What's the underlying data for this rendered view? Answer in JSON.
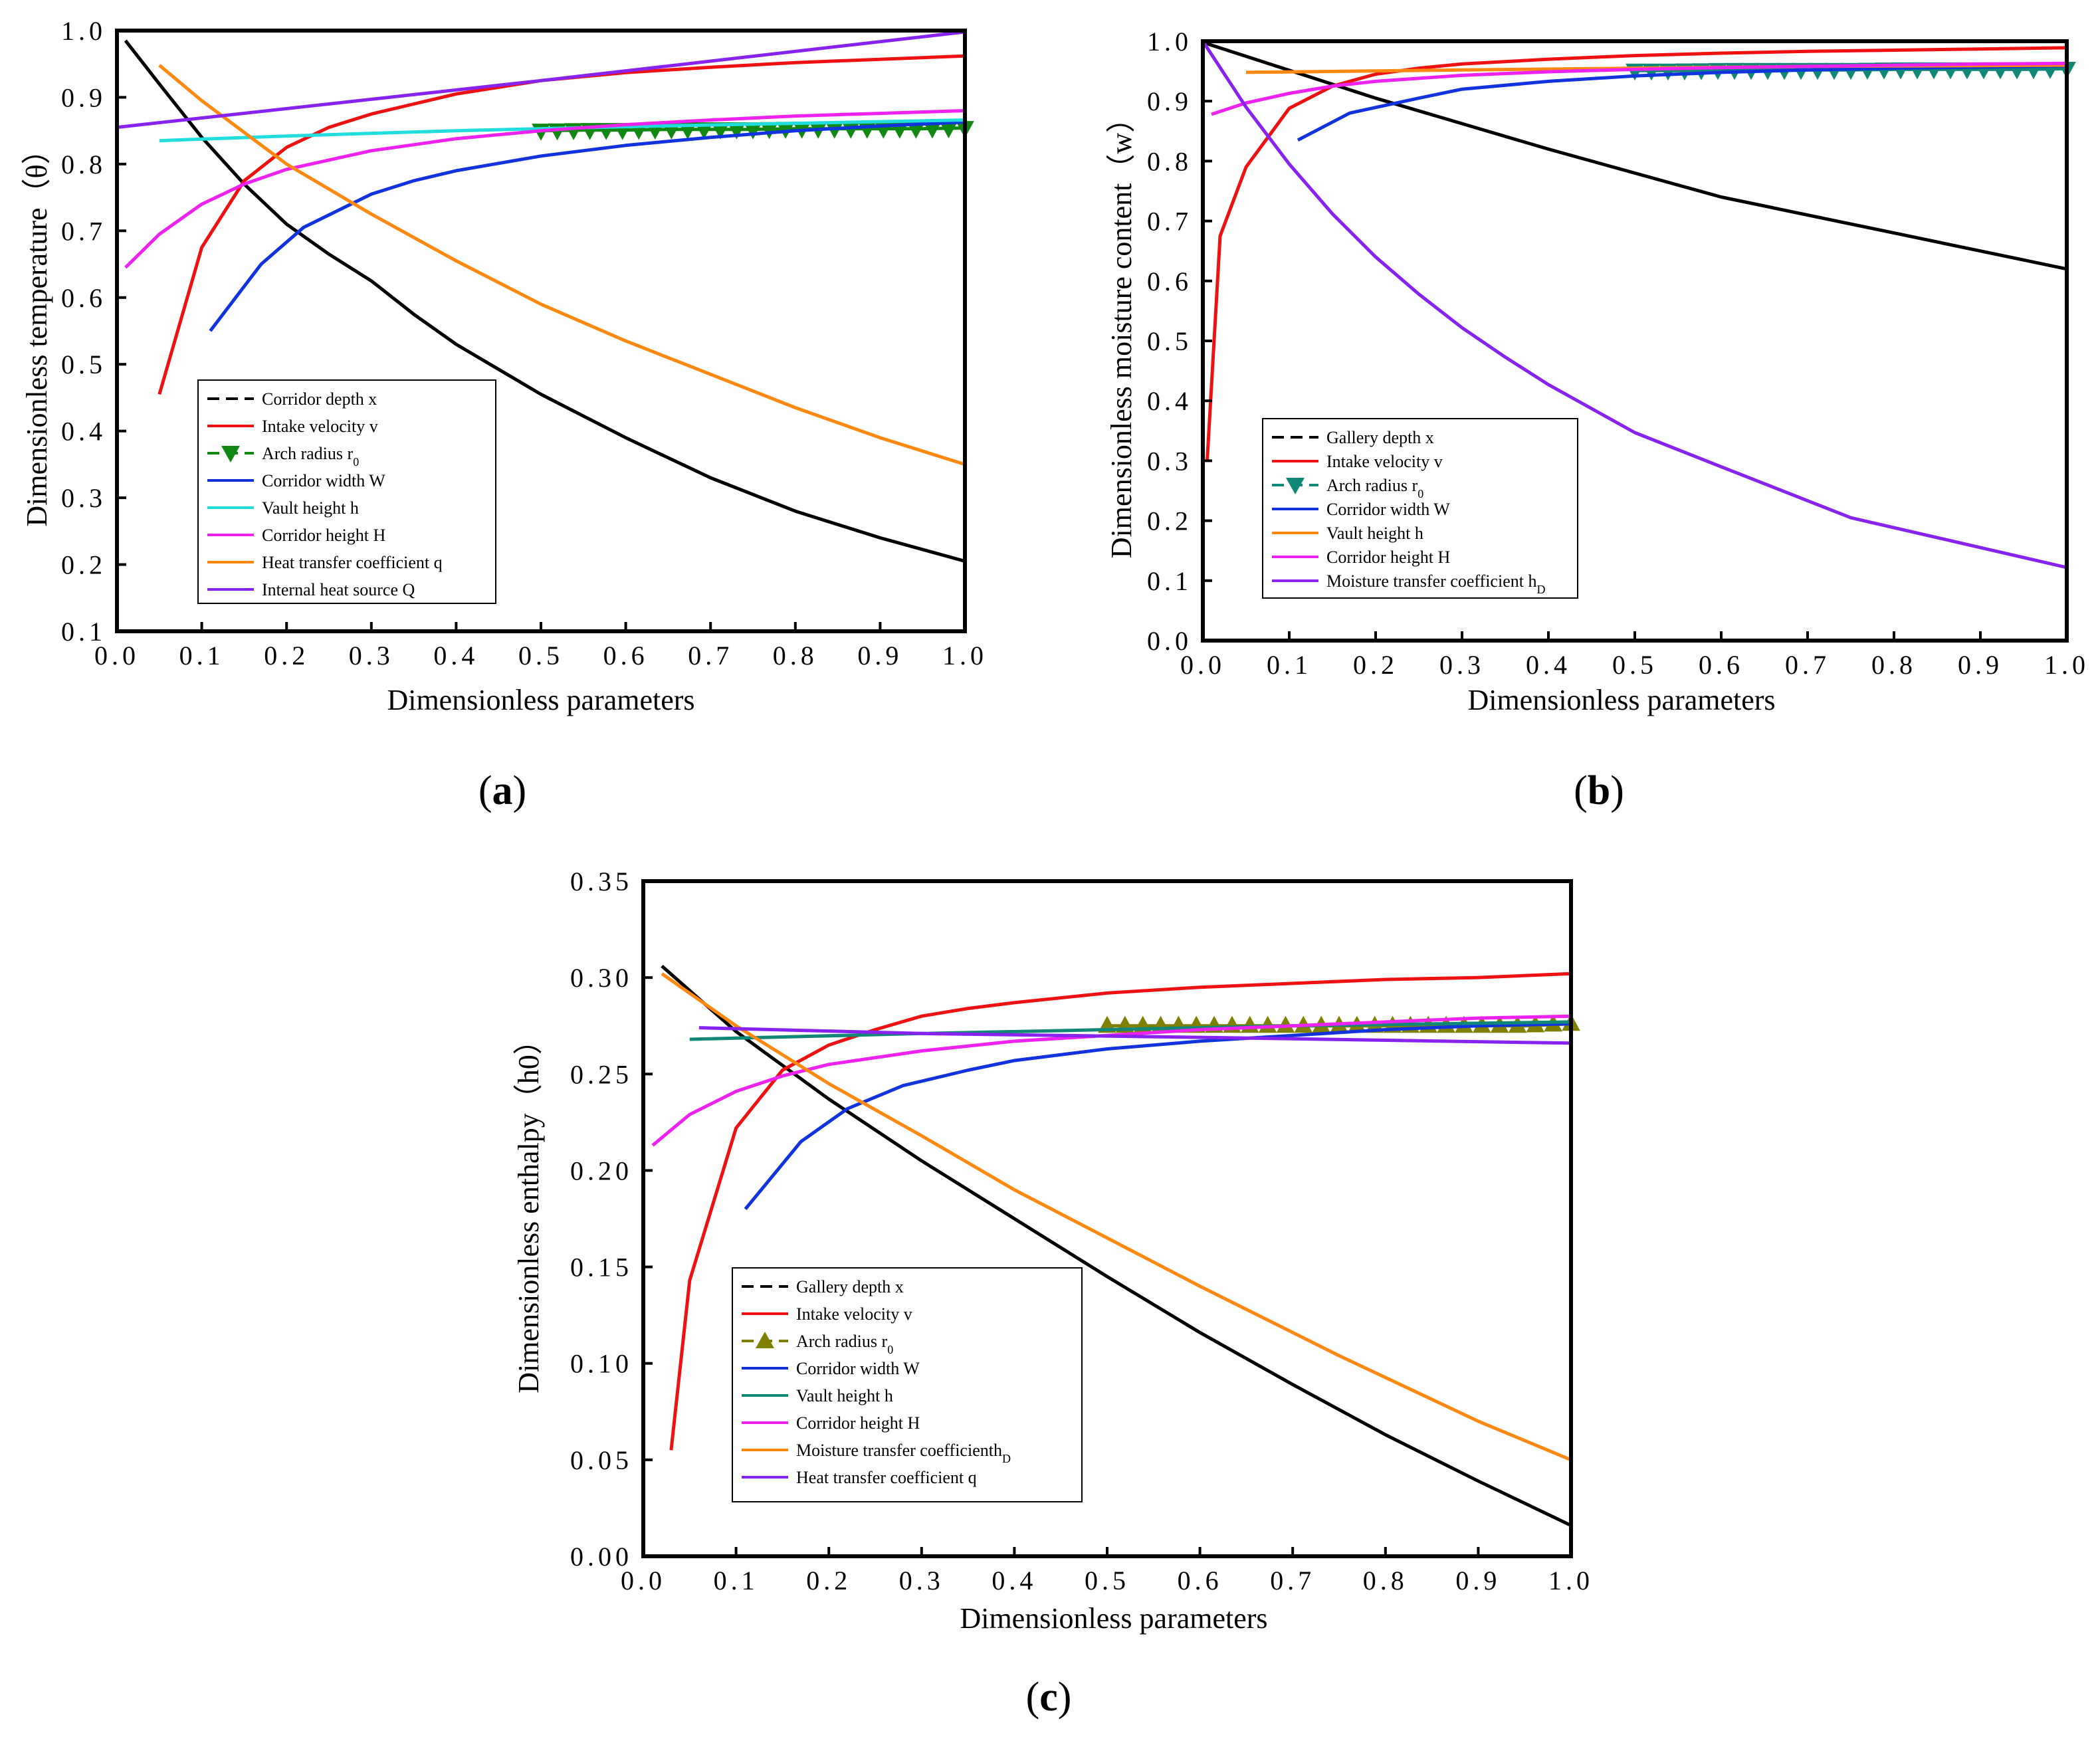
{
  "panels": [
    {
      "letter": "a",
      "open": "(",
      "close": ")"
    },
    {
      "letter": "b",
      "open": "(",
      "close": ")"
    },
    {
      "letter": "c",
      "open": "(",
      "close": ")"
    }
  ],
  "chart_data": [
    {
      "type": "line",
      "panel": "a",
      "xlabel": "Dimensionless parameters",
      "ylabel": "Dimensionless temperature（θ）",
      "xlim": [
        0,
        1.0
      ],
      "ylim": [
        0.1,
        1.0
      ],
      "xticks": [
        0.0,
        0.1,
        0.2,
        0.3,
        0.4,
        0.5,
        0.6,
        0.7,
        0.8,
        0.9,
        1.0
      ],
      "yticks": [
        0.1,
        0.2,
        0.3,
        0.4,
        0.5,
        0.6,
        0.7,
        0.8,
        0.9,
        1.0
      ],
      "xtick_labels": [
        "0.0",
        "0.1",
        "0.2",
        "0.3",
        "0.4",
        "0.5",
        "0.6",
        "0.7",
        "0.8",
        "0.9",
        "1.0"
      ],
      "ytick_labels": [
        "0.1",
        "0.2",
        "0.3",
        "0.4",
        "0.5",
        "0.6",
        "0.7",
        "0.8",
        "0.9",
        "1.0"
      ],
      "legend_position": "lower-left",
      "series": [
        {
          "name": "Corridor  depth x",
          "color": "#000000",
          "legend_style": "dash",
          "x": [
            0.01,
            0.05,
            0.1,
            0.15,
            0.2,
            0.25,
            0.3,
            0.35,
            0.4,
            0.5,
            0.6,
            0.7,
            0.8,
            0.9,
            1.0
          ],
          "y": [
            0.985,
            0.92,
            0.84,
            0.77,
            0.71,
            0.665,
            0.625,
            0.575,
            0.53,
            0.455,
            0.39,
            0.33,
            0.28,
            0.24,
            0.205
          ]
        },
        {
          "name": "Intake velocity v",
          "color": "#ee1111",
          "legend_style": "line",
          "x": [
            0.05,
            0.1,
            0.15,
            0.2,
            0.25,
            0.3,
            0.35,
            0.4,
            0.5,
            0.6,
            0.7,
            0.8,
            0.9,
            1.0
          ],
          "y": [
            0.455,
            0.675,
            0.775,
            0.825,
            0.855,
            0.875,
            0.89,
            0.905,
            0.925,
            0.937,
            0.945,
            0.952,
            0.957,
            0.962
          ]
        },
        {
          "name": "Arch radius r0",
          "color": "#118811",
          "legend_style": "dash-marker",
          "marker": "triangle-down",
          "x": [
            0.5,
            0.55,
            0.6,
            0.65,
            0.7,
            0.75,
            0.8,
            0.85,
            0.9,
            0.95,
            1.0
          ],
          "y": [
            0.85,
            0.851,
            0.851,
            0.852,
            0.852,
            0.852,
            0.853,
            0.853,
            0.853,
            0.853,
            0.854
          ]
        },
        {
          "name": "Corridor width W",
          "color": "#1133dd",
          "legend_style": "line",
          "x": [
            0.11,
            0.17,
            0.22,
            0.3,
            0.35,
            0.4,
            0.5,
            0.6,
            0.7,
            0.8,
            0.9,
            1.0
          ],
          "y": [
            0.55,
            0.65,
            0.705,
            0.755,
            0.775,
            0.79,
            0.812,
            0.828,
            0.84,
            0.85,
            0.857,
            0.863
          ]
        },
        {
          "name": "Vault height h",
          "color": "#22dddd",
          "legend_style": "line",
          "x": [
            0.05,
            0.2,
            0.4,
            0.6,
            0.8,
            1.0
          ],
          "y": [
            0.835,
            0.842,
            0.85,
            0.856,
            0.861,
            0.866
          ]
        },
        {
          "name": "Corridor height H",
          "color": "#ee22ee",
          "legend_style": "line",
          "x": [
            0.01,
            0.05,
            0.1,
            0.15,
            0.2,
            0.3,
            0.4,
            0.5,
            0.6,
            0.7,
            0.8,
            0.9,
            1.0
          ],
          "y": [
            0.645,
            0.695,
            0.74,
            0.77,
            0.792,
            0.82,
            0.838,
            0.85,
            0.859,
            0.866,
            0.872,
            0.876,
            0.88
          ]
        },
        {
          "name": "Heat transfer coefficient q",
          "color": "#ff8811",
          "legend_style": "line",
          "x": [
            0.05,
            0.1,
            0.2,
            0.3,
            0.4,
            0.5,
            0.6,
            0.7,
            0.8,
            0.9,
            1.0
          ],
          "y": [
            0.948,
            0.895,
            0.8,
            0.725,
            0.655,
            0.59,
            0.535,
            0.485,
            0.435,
            0.39,
            0.35
          ]
        },
        {
          "name": "Internal heat source Q",
          "color": "#8822ee",
          "legend_style": "line",
          "x": [
            0.0,
            0.5,
            1.0
          ],
          "y": [
            0.855,
            0.925,
            0.998
          ]
        }
      ]
    },
    {
      "type": "line",
      "panel": "b",
      "xlabel": "Dimensionless parameters",
      "ylabel": "Dimensionless moisture content（w）",
      "xlim": [
        0,
        1.0
      ],
      "ylim": [
        0,
        1.0
      ],
      "xticks": [
        0.0,
        0.1,
        0.2,
        0.3,
        0.4,
        0.5,
        0.6,
        0.7,
        0.8,
        0.9,
        1.0
      ],
      "yticks": [
        0.0,
        0.1,
        0.2,
        0.3,
        0.4,
        0.5,
        0.6,
        0.7,
        0.8,
        0.9,
        1.0
      ],
      "xtick_labels": [
        "0.0",
        "0.1",
        "0.2",
        "0.3",
        "0.4",
        "0.5",
        "0.6",
        "0.7",
        "0.8",
        "0.9",
        "1.0"
      ],
      "ytick_labels": [
        "0.0",
        "0.1",
        "0.2",
        "0.3",
        "0.4",
        "0.5",
        "0.6",
        "0.7",
        "0.8",
        "0.9",
        "1.0"
      ],
      "legend_position": "lower-left",
      "series": [
        {
          "name": "Gallery depth x",
          "color": "#000000",
          "legend_style": "dash",
          "x": [
            0.0,
            0.2,
            0.4,
            0.6,
            0.8,
            1.0
          ],
          "y": [
            0.998,
            0.905,
            0.82,
            0.74,
            0.68,
            0.62
          ]
        },
        {
          "name": "Intake velocity v",
          "color": "#ee1111",
          "legend_style": "line",
          "x": [
            0.005,
            0.02,
            0.05,
            0.1,
            0.15,
            0.2,
            0.25,
            0.3,
            0.4,
            0.5,
            0.6,
            0.7,
            0.8,
            0.9,
            1.0
          ],
          "y": [
            0.3,
            0.675,
            0.79,
            0.888,
            0.925,
            0.945,
            0.955,
            0.962,
            0.97,
            0.976,
            0.98,
            0.983,
            0.985,
            0.987,
            0.989
          ]
        },
        {
          "name": "Arch radius r0",
          "color": "#118877",
          "legend_style": "dash-marker",
          "marker": "triangle-down",
          "x": [
            0.5,
            0.55,
            0.6,
            0.65,
            0.7,
            0.75,
            0.8,
            0.85,
            0.9,
            0.95,
            1.0
          ],
          "y": [
            0.951,
            0.951,
            0.952,
            0.952,
            0.952,
            0.952,
            0.953,
            0.953,
            0.953,
            0.953,
            0.954
          ]
        },
        {
          "name": "Corridor width W",
          "color": "#1133dd",
          "legend_style": "line",
          "x": [
            0.11,
            0.17,
            0.25,
            0.3,
            0.4,
            0.5,
            0.6,
            0.7,
            0.8,
            0.9,
            1.0
          ],
          "y": [
            0.835,
            0.88,
            0.905,
            0.92,
            0.933,
            0.942,
            0.948,
            0.952,
            0.955,
            0.957,
            0.959
          ]
        },
        {
          "name": "Vault height h",
          "color": "#ff8811",
          "legend_style": "line",
          "x": [
            0.05,
            0.3,
            0.5,
            0.7,
            1.0
          ],
          "y": [
            0.948,
            0.952,
            0.955,
            0.958,
            0.96
          ]
        },
        {
          "name": "Corridor height H",
          "color": "#ee22ee",
          "legend_style": "line",
          "x": [
            0.01,
            0.05,
            0.1,
            0.15,
            0.2,
            0.3,
            0.4,
            0.5,
            0.6,
            0.7,
            0.8,
            0.9,
            1.0
          ],
          "y": [
            0.878,
            0.897,
            0.913,
            0.925,
            0.933,
            0.943,
            0.949,
            0.953,
            0.956,
            0.958,
            0.96,
            0.962,
            0.963
          ]
        },
        {
          "name": "Moisture transfer coefficient hD",
          "color": "#8822ee",
          "legend_style": "line",
          "x": [
            0.0,
            0.05,
            0.1,
            0.15,
            0.2,
            0.25,
            0.3,
            0.35,
            0.4,
            0.5,
            0.6,
            0.75,
            1.0
          ],
          "y": [
            1.0,
            0.89,
            0.795,
            0.712,
            0.64,
            0.578,
            0.522,
            0.473,
            0.427,
            0.347,
            0.29,
            0.205,
            0.122
          ]
        }
      ]
    },
    {
      "type": "line",
      "panel": "c",
      "xlabel": "Dimensionless parameters",
      "ylabel": "Dimensionless enthalpy（h0）",
      "xlim": [
        0,
        1.0
      ],
      "ylim": [
        0,
        0.35
      ],
      "xticks": [
        0.0,
        0.1,
        0.2,
        0.3,
        0.4,
        0.5,
        0.6,
        0.7,
        0.8,
        0.9,
        1.0
      ],
      "yticks": [
        0.0,
        0.05,
        0.1,
        0.15,
        0.2,
        0.25,
        0.3,
        0.35
      ],
      "xtick_labels": [
        "0.0",
        "0.1",
        "0.2",
        "0.3",
        "0.4",
        "0.5",
        "0.6",
        "0.7",
        "0.8",
        "0.9",
        "1.0"
      ],
      "ytick_labels": [
        "0.00",
        "0.05",
        "0.10",
        "0.15",
        "0.20",
        "0.25",
        "0.30",
        "0.35"
      ],
      "legend_position": "lower-left",
      "series": [
        {
          "name": "Gallery depth x",
          "color": "#000000",
          "legend_style": "dash",
          "x": [
            0.02,
            0.1,
            0.2,
            0.3,
            0.4,
            0.5,
            0.6,
            0.7,
            0.8,
            0.9,
            1.0
          ],
          "y": [
            0.306,
            0.272,
            0.237,
            0.205,
            0.175,
            0.145,
            0.116,
            0.089,
            0.063,
            0.039,
            0.016
          ]
        },
        {
          "name": "Intake velocity v",
          "color": "#ee1111",
          "legend_style": "line",
          "x": [
            0.03,
            0.05,
            0.1,
            0.15,
            0.2,
            0.25,
            0.3,
            0.35,
            0.4,
            0.5,
            0.6,
            0.7,
            0.8,
            0.9,
            1.0
          ],
          "y": [
            0.055,
            0.143,
            0.222,
            0.252,
            0.265,
            0.273,
            0.28,
            0.284,
            0.287,
            0.292,
            0.295,
            0.297,
            0.299,
            0.3,
            0.302
          ]
        },
        {
          "name": "Arch radius r0",
          "color": "#808000",
          "legend_style": "dash-marker",
          "marker": "triangle-up",
          "x": [
            0.5,
            0.55,
            0.6,
            0.65,
            0.7,
            0.75,
            0.8,
            0.85,
            0.9,
            0.95,
            1.0
          ],
          "y": [
            0.275,
            0.275,
            0.275,
            0.275,
            0.275,
            0.275,
            0.275,
            0.275,
            0.275,
            0.275,
            0.276
          ]
        },
        {
          "name": "Corridor width W",
          "color": "#1133dd",
          "legend_style": "line",
          "x": [
            0.11,
            0.17,
            0.22,
            0.28,
            0.35,
            0.4,
            0.5,
            0.6,
            0.7,
            0.8,
            0.9,
            1.0
          ],
          "y": [
            0.18,
            0.215,
            0.232,
            0.244,
            0.252,
            0.257,
            0.263,
            0.267,
            0.27,
            0.273,
            0.275,
            0.276
          ]
        },
        {
          "name": "Vault height h",
          "color": "#118877",
          "legend_style": "line",
          "x": [
            0.05,
            0.3,
            0.5,
            0.7,
            1.0
          ],
          "y": [
            0.268,
            0.271,
            0.273,
            0.275,
            0.277
          ]
        },
        {
          "name": "Corridor height H",
          "color": "#ee22ee",
          "legend_style": "line",
          "x": [
            0.01,
            0.05,
            0.1,
            0.15,
            0.2,
            0.3,
            0.4,
            0.5,
            0.6,
            0.7,
            0.8,
            0.9,
            1.0
          ],
          "y": [
            0.213,
            0.229,
            0.241,
            0.249,
            0.255,
            0.262,
            0.267,
            0.27,
            0.273,
            0.275,
            0.277,
            0.279,
            0.28
          ]
        },
        {
          "name": "Moisture transfer coefficienthD",
          "color": "#ff8811",
          "legend_style": "line",
          "x": [
            0.02,
            0.1,
            0.2,
            0.3,
            0.4,
            0.5,
            0.6,
            0.75,
            0.9,
            1.0
          ],
          "y": [
            0.302,
            0.275,
            0.245,
            0.218,
            0.19,
            0.165,
            0.14,
            0.104,
            0.07,
            0.05
          ]
        },
        {
          "name": "Heat transfer coefficient q",
          "color": "#8822ee",
          "legend_style": "line",
          "x": [
            0.06,
            0.3,
            0.6,
            1.0
          ],
          "y": [
            0.274,
            0.271,
            0.269,
            0.266
          ]
        }
      ]
    }
  ]
}
